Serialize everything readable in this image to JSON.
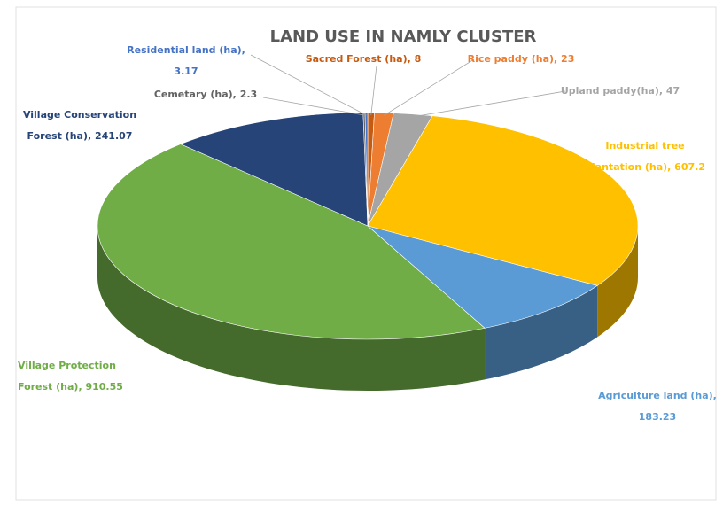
{
  "chart_data": {
    "type": "pie3d",
    "title": "LAND USE IN NAMLY CLUSTER",
    "categories": [
      "Sacred Forest (ha)",
      "Rice paddy (ha)",
      "Upland paddy(ha)",
      "Industrial tree plantation (ha)",
      "Agriculture land (ha)",
      "Village Protection Forest (ha)",
      "Village Conservation Forest (ha)",
      "Cemetary (ha)",
      "Residential land (ha)"
    ],
    "values": [
      8,
      23,
      47,
      607.2,
      183.23,
      910.55,
      241.07,
      2.3,
      3.17
    ],
    "value_labels": [
      [
        "Sacred Forest (ha), 8"
      ],
      [
        "Rice paddy (ha), 23"
      ],
      [
        "Upland paddy(ha), 47"
      ],
      [
        "Industrial tree",
        "plantation (ha), 607.2"
      ],
      [
        "Agriculture land (ha),",
        "183.23"
      ],
      [
        "Village Protection",
        "Forest (ha), 910.55"
      ],
      [
        "Village Conservation",
        "Forest (ha), 241.07"
      ],
      [
        "Cemetary (ha), 2.3"
      ],
      [
        "Residential land (ha),",
        "3.17"
      ]
    ],
    "colors": [
      "#c55a11",
      "#ed7d31",
      "#a5a5a5",
      "#ffc000",
      "#5b9bd5",
      "#70ad47",
      "#264478",
      "#636363",
      "#4472c4"
    ]
  }
}
